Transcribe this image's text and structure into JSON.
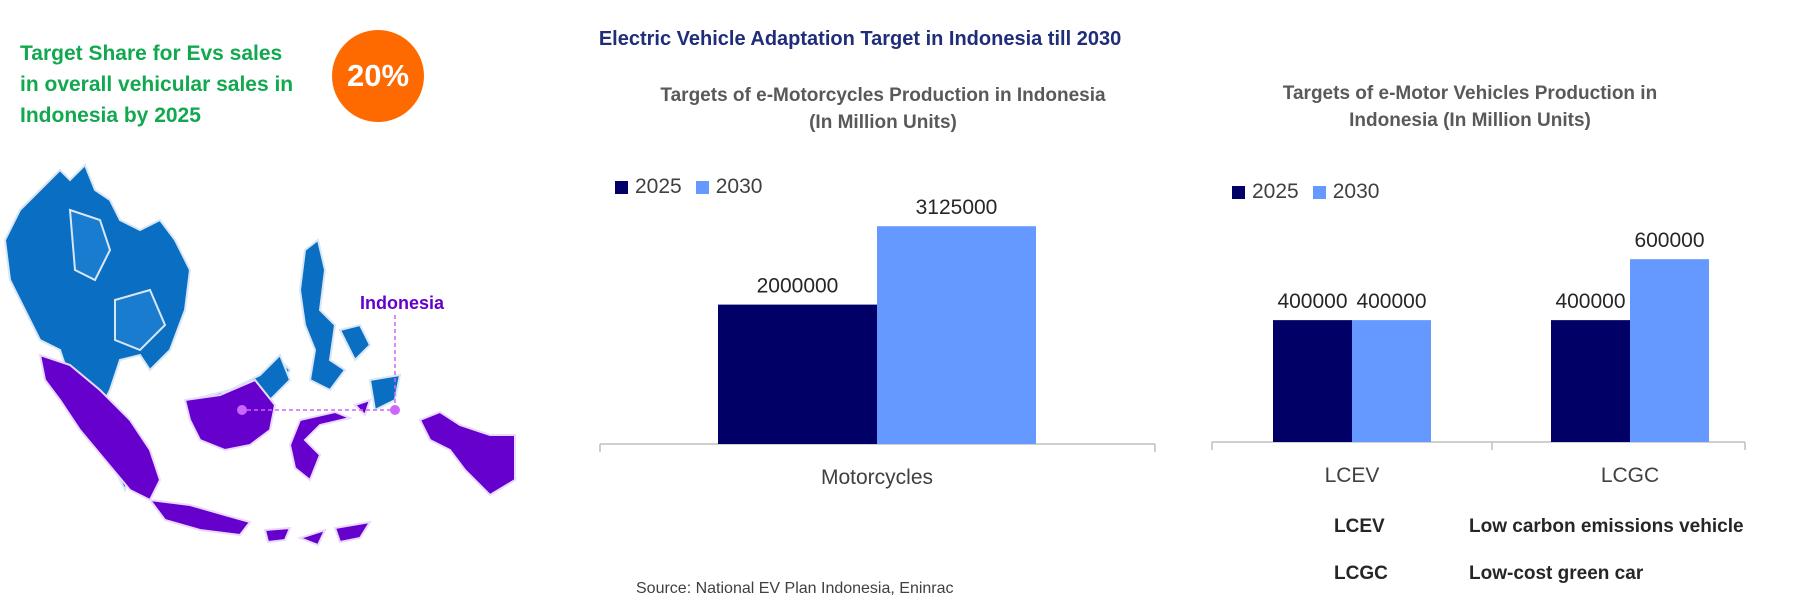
{
  "left_panel": {
    "headline_lines": [
      "Target Share for Evs sales",
      "in overall vehicular sales in",
      "Indonesia by 2025"
    ],
    "share_badge": "20%",
    "map_label": "Indonesia"
  },
  "main_title": "Electric Vehicle Adaptation Target in Indonesia till 2030",
  "colors": {
    "series_2025": "#000066",
    "series_2030": "#6699ff",
    "highlight": "#6600cc",
    "region_blue": "#0a6fc2",
    "badge": "#ff6a00"
  },
  "chart_data": [
    {
      "type": "bar",
      "title_lines": [
        "Targets of e-Motorcycles Production in Indonesia",
        "(In Million Units)"
      ],
      "categories": [
        "Motorcycles"
      ],
      "series": [
        {
          "name": "2025",
          "values": [
            2000000
          ]
        },
        {
          "name": "2030",
          "values": [
            3125000
          ]
        }
      ],
      "data_labels": [
        [
          "2000000"
        ],
        [
          "3125000"
        ]
      ],
      "ylim": [
        0,
        3300000
      ],
      "legend": "top-left",
      "grid": false
    },
    {
      "type": "bar",
      "title_lines": [
        "Targets of e-Motor Vehicles Production in",
        "Indonesia (In Million Units)"
      ],
      "categories": [
        "LCEV",
        "LCGC"
      ],
      "series": [
        {
          "name": "2025",
          "values": [
            400000,
            400000
          ]
        },
        {
          "name": "2030",
          "values": [
            400000,
            600000
          ]
        }
      ],
      "data_labels": [
        [
          "400000",
          "400000"
        ],
        [
          "400000",
          "600000"
        ]
      ],
      "ylim": [
        0,
        640000
      ],
      "legend": "top-left",
      "grid": false
    }
  ],
  "glossary": [
    {
      "term": "LCEV",
      "definition": "Low carbon emissions vehicle"
    },
    {
      "term": "LCGC",
      "definition": "Low-cost green car"
    }
  ],
  "source": "Source: National EV Plan Indonesia, Eninrac"
}
